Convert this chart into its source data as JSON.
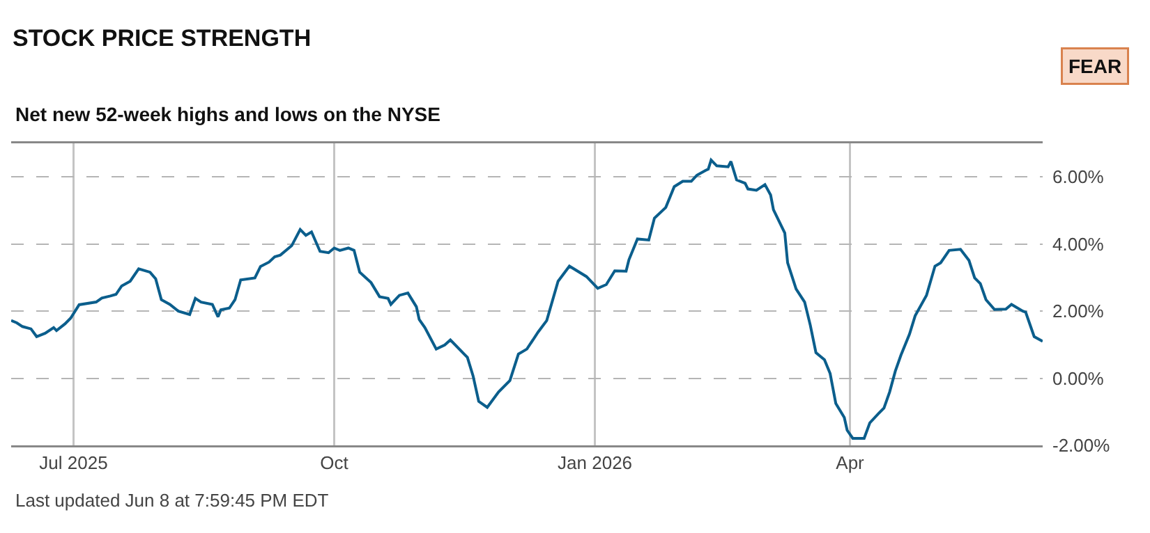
{
  "chart_data": {
    "type": "line",
    "title": "STOCK PRICE STRENGTH",
    "subtitle": "Net new 52-week highs and lows on the NYSE",
    "annotations": [
      "FEAR",
      "Last updated Jun 8 at 7:59:45 PM EDT"
    ],
    "x": [
      "2025-06-09",
      "2025-06-11",
      "2025-06-13",
      "2025-06-16",
      "2025-06-18",
      "2025-06-21",
      "2025-06-24",
      "2025-06-25",
      "2025-06-28",
      "2025-06-30",
      "2025-07-03",
      "2025-07-09",
      "2025-07-11",
      "2025-07-14",
      "2025-07-16",
      "2025-07-18",
      "2025-07-21",
      "2025-07-24",
      "2025-07-28",
      "2025-07-30",
      "2025-08-01",
      "2025-08-04",
      "2025-08-07",
      "2025-08-11",
      "2025-08-13",
      "2025-08-15",
      "2025-08-19",
      "2025-08-21",
      "2025-08-22",
      "2025-08-25",
      "2025-08-27",
      "2025-08-29",
      "2025-09-03",
      "2025-09-05",
      "2025-09-08",
      "2025-09-10",
      "2025-09-12",
      "2025-09-16",
      "2025-09-19",
      "2025-09-21",
      "2025-09-23",
      "2025-09-26",
      "2025-09-29",
      "2025-10-01",
      "2025-10-03",
      "2025-10-06",
      "2025-10-08",
      "2025-10-10",
      "2025-10-14",
      "2025-10-17",
      "2025-10-20",
      "2025-10-21",
      "2025-10-24",
      "2025-10-27",
      "2025-10-30",
      "2025-10-31",
      "2025-11-02",
      "2025-11-06",
      "2025-11-09",
      "2025-11-11",
      "2025-11-17",
      "2025-11-19",
      "2025-11-21",
      "2025-11-24",
      "2025-11-28",
      "2025-12-02",
      "2025-12-05",
      "2025-12-08",
      "2025-12-12",
      "2025-12-15",
      "2025-12-19",
      "2025-12-23",
      "2025-12-29",
      "2026-01-02",
      "2026-01-05",
      "2026-01-08",
      "2026-01-12",
      "2026-01-13",
      "2026-01-16",
      "2026-01-20",
      "2026-01-22",
      "2026-01-26",
      "2026-01-29",
      "2026-02-01",
      "2026-02-04",
      "2026-02-06",
      "2026-02-09",
      "2026-02-10",
      "2026-02-11",
      "2026-02-13",
      "2026-02-17",
      "2026-02-18",
      "2026-02-20",
      "2026-02-23",
      "2026-02-24",
      "2026-02-27",
      "2026-03-02",
      "2026-03-04",
      "2026-03-05",
      "2026-03-09",
      "2026-03-10",
      "2026-03-13",
      "2026-03-16",
      "2026-03-18",
      "2026-03-20",
      "2026-03-23",
      "2026-03-25",
      "2026-03-27",
      "2026-03-30",
      "2026-03-31",
      "2026-04-02",
      "2026-04-06",
      "2026-04-08",
      "2026-04-11",
      "2026-04-13",
      "2026-04-15",
      "2026-04-17",
      "2026-04-19",
      "2026-04-22",
      "2026-04-24",
      "2026-04-28",
      "2026-05-01",
      "2026-05-03",
      "2026-05-06",
      "2026-05-10",
      "2026-05-13",
      "2026-05-15",
      "2026-05-17",
      "2026-05-19",
      "2026-05-22",
      "2026-05-26",
      "2026-05-28",
      "2026-06-01",
      "2026-06-02",
      "2026-06-05",
      "2026-06-08"
    ],
    "series": [
      {
        "color": "#0b5e8c",
        "values": [
          1.72,
          1.65,
          1.54,
          1.47,
          1.24,
          1.34,
          1.51,
          1.42,
          1.62,
          1.79,
          2.19,
          2.27,
          2.39,
          2.45,
          2.5,
          2.75,
          2.89,
          3.26,
          3.16,
          2.96,
          2.34,
          2.2,
          2.0,
          1.9,
          2.38,
          2.27,
          2.2,
          1.83,
          2.04,
          2.09,
          2.34,
          2.93,
          2.99,
          3.33,
          3.46,
          3.62,
          3.67,
          3.95,
          4.43,
          4.26,
          4.36,
          3.78,
          3.74,
          3.88,
          3.81,
          3.88,
          3.81,
          3.16,
          2.85,
          2.43,
          2.38,
          2.2,
          2.47,
          2.54,
          2.13,
          1.75,
          1.51,
          0.87,
          0.99,
          1.14,
          0.62,
          0.07,
          -0.69,
          -0.87,
          -0.41,
          -0.07,
          0.72,
          0.87,
          1.38,
          1.72,
          2.89,
          3.34,
          3.03,
          2.68,
          2.79,
          3.2,
          3.19,
          3.53,
          4.15,
          4.12,
          4.77,
          5.09,
          5.71,
          5.87,
          5.87,
          6.05,
          6.19,
          6.23,
          6.5,
          6.33,
          6.3,
          6.46,
          5.91,
          5.81,
          5.64,
          5.6,
          5.77,
          5.46,
          5.02,
          4.33,
          3.44,
          2.66,
          2.27,
          1.58,
          0.76,
          0.55,
          0.14,
          -0.75,
          -1.17,
          -1.55,
          -1.79,
          -1.79,
          -1.33,
          -1.06,
          -0.89,
          -0.41,
          0.21,
          0.69,
          1.31,
          1.86,
          2.47,
          3.34,
          3.44,
          3.81,
          3.84,
          3.51,
          2.99,
          2.82,
          2.34,
          2.05,
          2.06,
          2.2,
          2.0,
          1.97,
          1.24,
          1.1
        ]
      }
    ],
    "xlim": [
      "2025-06-09",
      "2026-06-08"
    ],
    "xticks": [
      {
        "value": "2025-07-01",
        "label": "Jul 2025"
      },
      {
        "value": "2025-10-01",
        "label": "Oct"
      },
      {
        "value": "2026-01-01",
        "label": "Jan 2026"
      },
      {
        "value": "2026-04-01",
        "label": "Apr"
      }
    ],
    "ylim": [
      -2,
      7
    ],
    "yticks": [
      {
        "value": -2,
        "label": "-2.00%"
      },
      {
        "value": 0,
        "label": "0.00%"
      },
      {
        "value": 2,
        "label": "2.00%"
      },
      {
        "value": 4,
        "label": "4.00%"
      },
      {
        "value": 6,
        "label": "6.00%"
      }
    ],
    "grid": true,
    "marker": "none",
    "line_style": "solid"
  }
}
